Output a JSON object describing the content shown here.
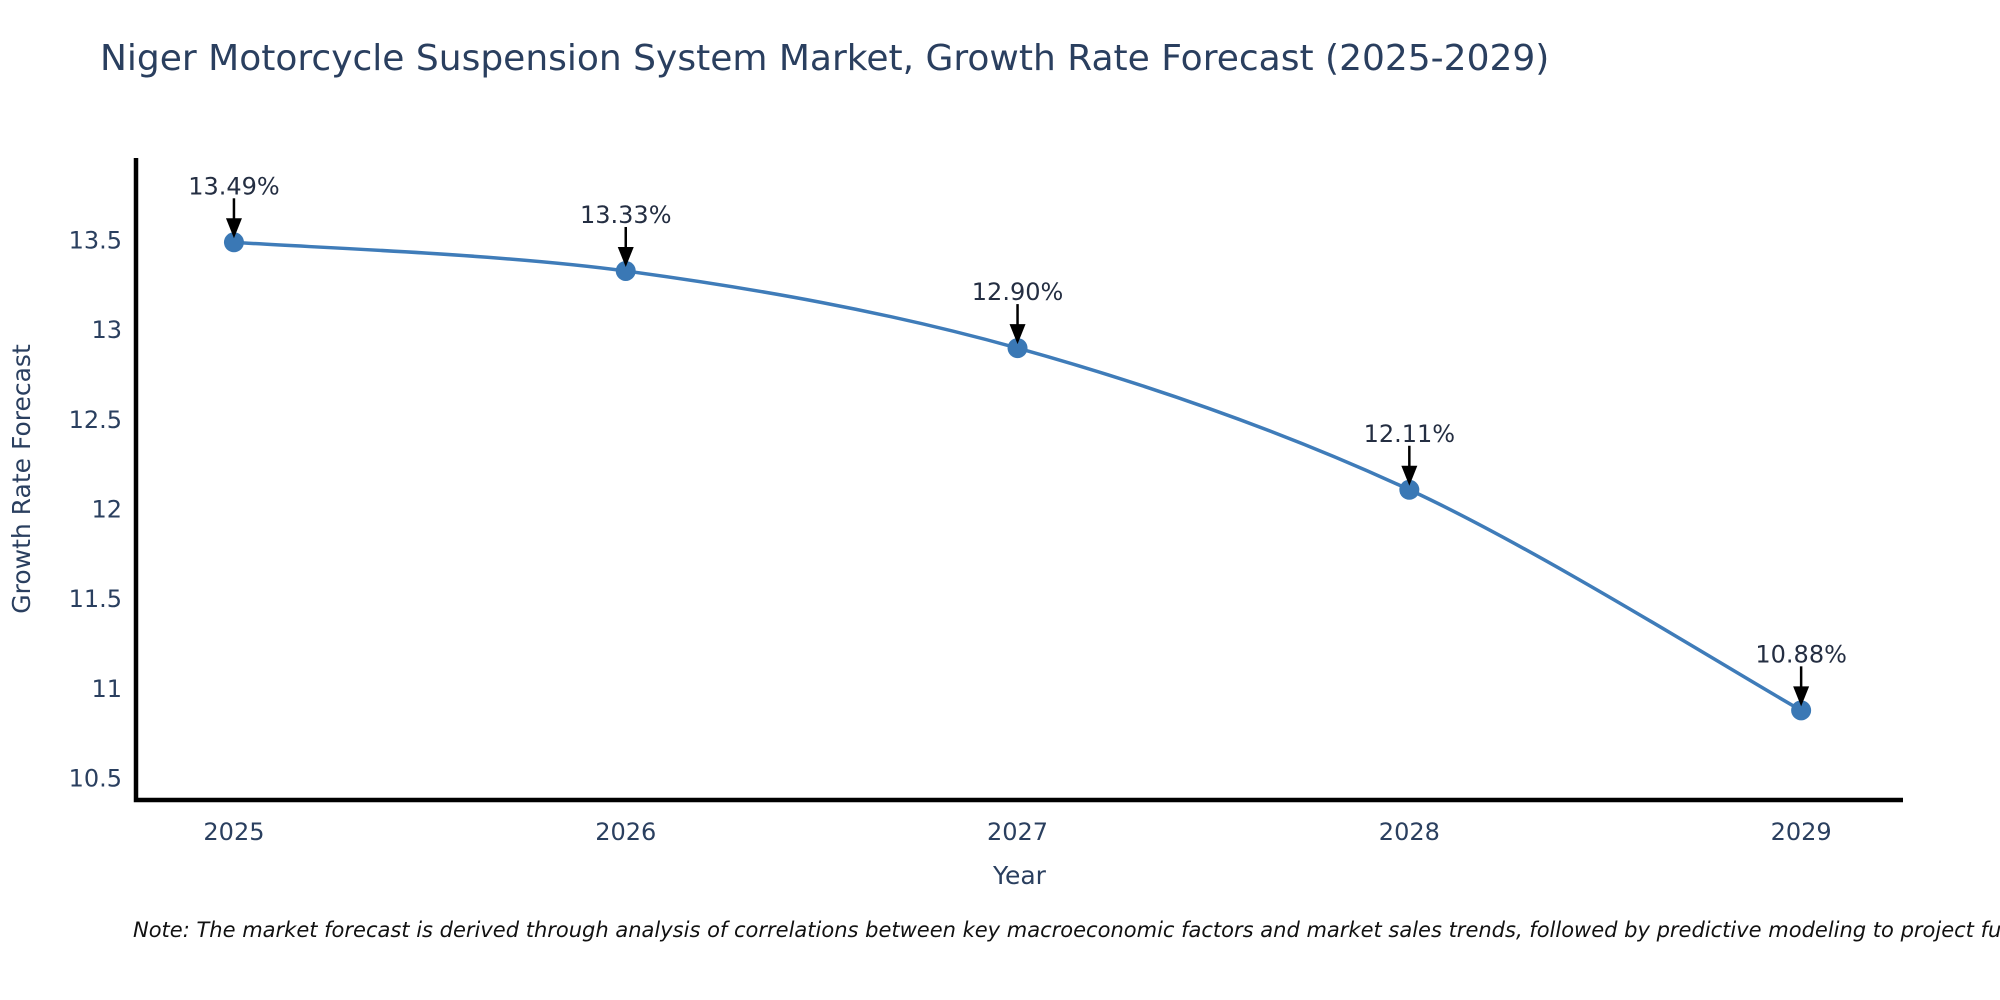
{
  "page": {
    "note": "Note: The market forecast is derived through analysis of correlations between key macroeconomic factors and market sales trends, followed by predictive modeling to project future sal"
  },
  "colors": {
    "background": "#ffffff",
    "title_text": "#2a3f5f",
    "axis_text": "#2a3f5f",
    "axis_line": "#000000",
    "series_line": "#3f7cb9",
    "marker_fill": "#3a78b5",
    "annotation_text": "#242e42",
    "arrow": "#000000",
    "note_text": "#111111"
  },
  "chart_data": {
    "type": "line",
    "title": "Niger Motorcycle Suspension System Market, Growth Rate Forecast (2025-2029)",
    "xlabel": "Year",
    "ylabel": "Growth Rate Forecast",
    "x": [
      2025,
      2026,
      2027,
      2028,
      2029
    ],
    "x_tick_labels": [
      "2025",
      "2026",
      "2027",
      "2028",
      "2029"
    ],
    "y_ticks": [
      13.5,
      13.0,
      12.5,
      12.0,
      11.5,
      11.0,
      10.5
    ],
    "y_tick_labels": [
      "13.5",
      "13",
      "12.5",
      "12",
      "11.5",
      "11",
      "10.5"
    ],
    "series": [
      {
        "name": "Growth Rate Forecast",
        "values": [
          13.49,
          13.33,
          12.9,
          12.11,
          10.88
        ],
        "point_labels": [
          "13.49%",
          "13.33%",
          "12.90%",
          "12.11%",
          "10.88%"
        ]
      }
    ],
    "xlim": [
      2024.75,
      2029.26
    ],
    "ylim": [
      10.38,
      13.96
    ],
    "grid": false,
    "legend": "none",
    "annotation_style": "black arrow pointing down onto each marker, label above"
  }
}
